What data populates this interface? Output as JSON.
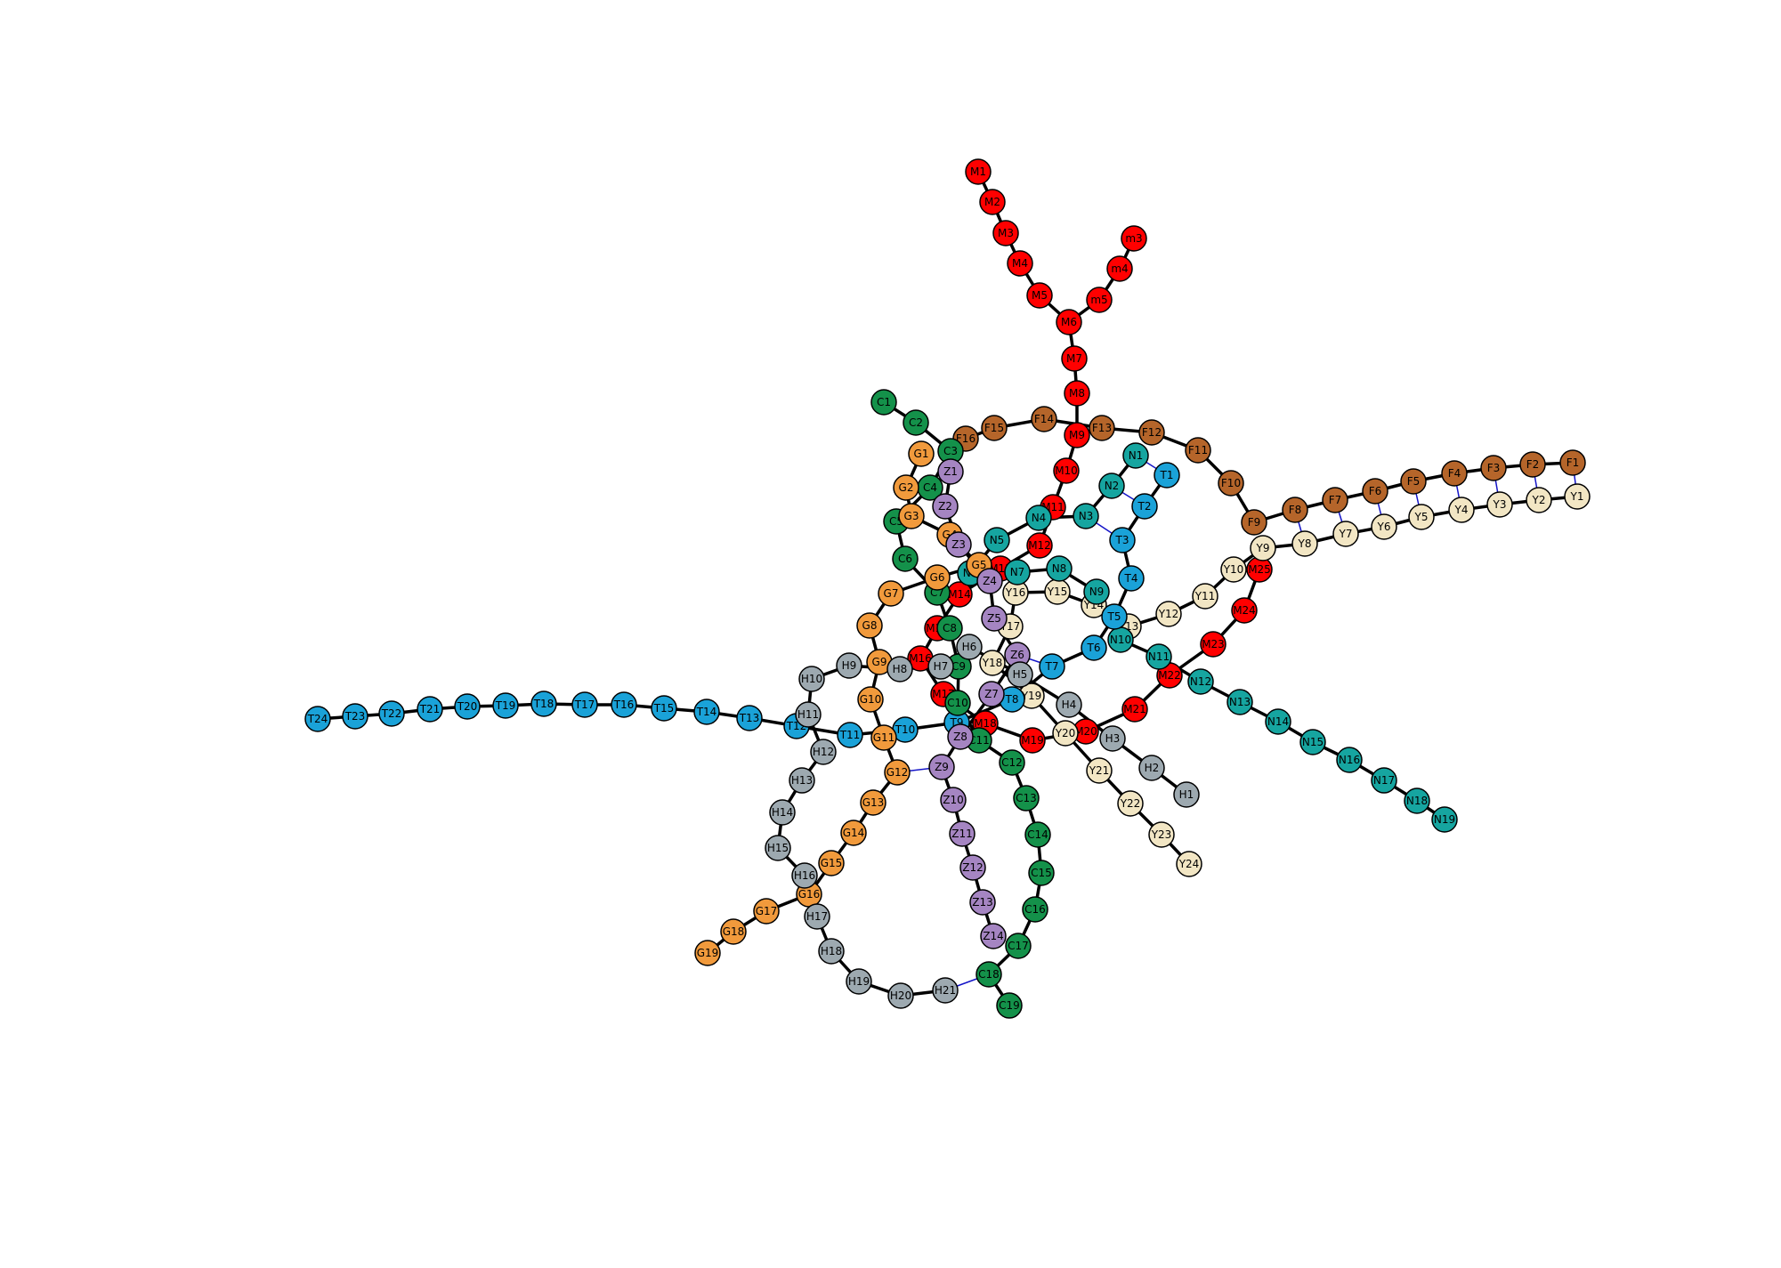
{
  "colors": {
    "M": "#ff0000",
    "m": "#ff0000",
    "F": "#b5652a",
    "Y": "#f2e6c4",
    "N": "#16a5a0",
    "T": "#1aa2d8",
    "C": "#14914a",
    "G": "#f19a3c",
    "Z": "#a585c2",
    "H": "#9da9b0",
    "edge": "#000000",
    "crosslink": "#1414c8",
    "stroke": "#000000"
  },
  "chains": [
    {
      "name": "M",
      "nodes": [
        "M1",
        "M2",
        "M3",
        "M4",
        "M5",
        "M6",
        "M7",
        "M8",
        "M9",
        "M10",
        "M11",
        "M12",
        "M13",
        "M14",
        "M15",
        "M16",
        "M17",
        "M18",
        "M19",
        "M20",
        "M21",
        "M22",
        "M23",
        "M24",
        "M25"
      ]
    },
    {
      "name": "m",
      "nodes": [
        "m3",
        "m4",
        "m5"
      ]
    },
    {
      "name": "F",
      "nodes": [
        "F1",
        "F2",
        "F3",
        "F4",
        "F5",
        "F6",
        "F7",
        "F8",
        "F9",
        "F10",
        "F11",
        "F12",
        "F13",
        "F14",
        "F15",
        "F16"
      ]
    },
    {
      "name": "Y",
      "nodes": [
        "Y1",
        "Y2",
        "Y3",
        "Y4",
        "Y5",
        "Y6",
        "Y7",
        "Y8",
        "Y9",
        "Y10",
        "Y11",
        "Y12",
        "Y13",
        "Y14",
        "Y15",
        "Y16",
        "Y17",
        "Y18",
        "Y19",
        "Y20",
        "Y21",
        "Y22",
        "Y23",
        "Y24"
      ]
    },
    {
      "name": "N",
      "nodes": [
        "N1",
        "N2",
        "N3",
        "N4",
        "N5",
        "N6",
        "N7",
        "N8",
        "N9",
        "N10",
        "N11",
        "N12",
        "N13",
        "N14",
        "N15",
        "N16",
        "N17",
        "N18",
        "N19"
      ]
    },
    {
      "name": "T",
      "nodes": [
        "T1",
        "T2",
        "T3",
        "T4",
        "T5",
        "T6",
        "T7",
        "T8",
        "T9",
        "T10",
        "T11",
        "T12",
        "T13",
        "T14",
        "T15",
        "T16",
        "T17",
        "T18",
        "T19",
        "T20",
        "T21",
        "T22",
        "T23",
        "T24"
      ]
    },
    {
      "name": "C",
      "nodes": [
        "C1",
        "C2",
        "C3",
        "C4",
        "C5",
        "C6",
        "C7",
        "C8",
        "C9",
        "C10",
        "C11",
        "C12",
        "C13",
        "C14",
        "C15",
        "C16",
        "C17",
        "C18",
        "C19"
      ]
    },
    {
      "name": "G",
      "nodes": [
        "G1",
        "G2",
        "G3",
        "G4",
        "G5",
        "G6",
        "G7",
        "G8",
        "G9",
        "G10",
        "G11",
        "G12",
        "G13",
        "G14",
        "G15",
        "G16",
        "G17",
        "G18",
        "G19"
      ]
    },
    {
      "name": "Z",
      "nodes": [
        "Z1",
        "Z2",
        "Z3",
        "Z4",
        "Z5",
        "Z6",
        "Z7",
        "Z8",
        "Z9",
        "Z10",
        "Z11",
        "Z12",
        "Z13",
        "Z14"
      ]
    },
    {
      "name": "H",
      "nodes": [
        "H1",
        "H2",
        "H3",
        "H4",
        "H5",
        "H6",
        "H7",
        "H8",
        "H9",
        "H10",
        "H11",
        "H12",
        "H13",
        "H14",
        "H15",
        "H16",
        "H17",
        "H18",
        "H19",
        "H20",
        "H21"
      ]
    }
  ],
  "extra_edges": [
    [
      "M6",
      "m5"
    ]
  ],
  "crosslinks": [
    [
      "F1",
      "Y1"
    ],
    [
      "F2",
      "Y2"
    ],
    [
      "F3",
      "Y3"
    ],
    [
      "F4",
      "Y4"
    ],
    [
      "F5",
      "Y5"
    ],
    [
      "F6",
      "Y6"
    ],
    [
      "F7",
      "Y7"
    ],
    [
      "F8",
      "Y8"
    ],
    [
      "N1",
      "T1"
    ],
    [
      "N2",
      "T2"
    ],
    [
      "N3",
      "T3"
    ],
    [
      "N6",
      "Z4"
    ],
    [
      "Z6",
      "T7"
    ],
    [
      "G12",
      "Z9"
    ],
    [
      "H21",
      "C18"
    ],
    [
      "C3",
      "F16"
    ]
  ]
}
